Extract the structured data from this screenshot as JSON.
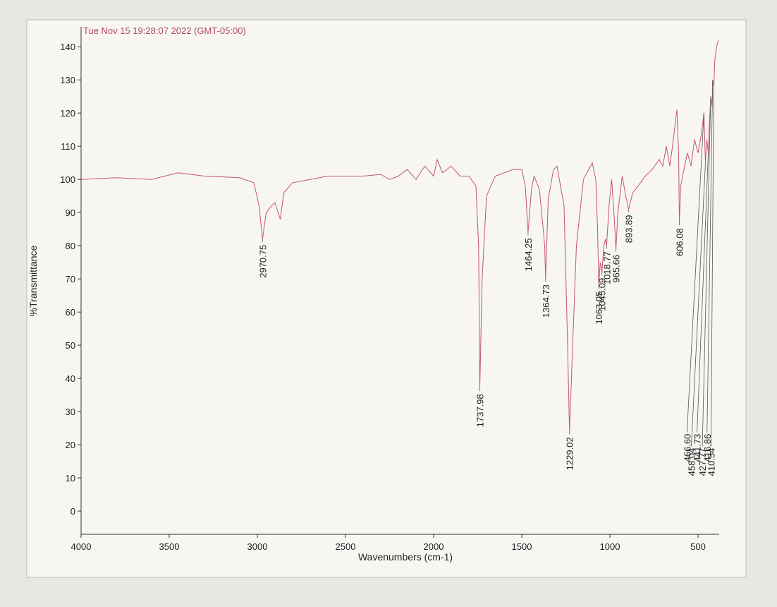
{
  "chart_data": {
    "type": "line",
    "title": "Tue Nov 15 19:28:07 2022 (GMT-05:00)",
    "xlabel": "Wavenumbers (cm-1)",
    "ylabel": "%Transmittance",
    "color": "#c4566e",
    "xlim": [
      4000,
      380
    ],
    "ylim": [
      -7,
      146
    ],
    "xticks": [
      4000,
      3500,
      3000,
      2500,
      2000,
      1500,
      1000,
      500
    ],
    "yticks": [
      0,
      10,
      20,
      30,
      40,
      50,
      60,
      70,
      80,
      90,
      100,
      110,
      120,
      130,
      140
    ],
    "x": [
      4000,
      3800,
      3600,
      3450,
      3300,
      3100,
      3020,
      2990,
      2970.75,
      2950,
      2920,
      2900,
      2870,
      2850,
      2800,
      2600,
      2400,
      2300,
      2250,
      2200,
      2150,
      2100,
      2050,
      2000,
      1980,
      1950,
      1900,
      1850,
      1800,
      1760,
      1745,
      1737.98,
      1725,
      1700,
      1650,
      1550,
      1500,
      1480,
      1464.25,
      1445,
      1430,
      1400,
      1380,
      1370,
      1364.73,
      1350,
      1320,
      1300,
      1260,
      1240,
      1229.02,
      1215,
      1190,
      1150,
      1100,
      1080,
      1070,
      1063.05,
      1055,
      1045.09,
      1035,
      1025,
      1018.77,
      1005,
      990,
      975,
      965.66,
      955,
      930,
      910,
      893.89,
      870,
      840,
      800,
      760,
      720,
      700,
      680,
      660,
      640,
      620,
      610,
      606.08,
      598,
      580,
      560,
      540,
      520,
      500,
      480,
      466.6,
      458.04,
      450,
      441.73,
      435,
      427.77,
      420,
      416.86,
      410.54,
      405,
      395,
      385
    ],
    "values": [
      100,
      100.5,
      100,
      102,
      101,
      100.5,
      99,
      92,
      82,
      90,
      92,
      93,
      88,
      96,
      99,
      101,
      101,
      101.5,
      100,
      101,
      103,
      100,
      104,
      101,
      106,
      102,
      104,
      101,
      101,
      98,
      80,
      37,
      70,
      95,
      101,
      103,
      103,
      98,
      84,
      97,
      101,
      97,
      86,
      80,
      70,
      94,
      103,
      104,
      92,
      50,
      24,
      45,
      80,
      100,
      105,
      100,
      85,
      68,
      75,
      72,
      80,
      82,
      80,
      92,
      100,
      88,
      79,
      90,
      101,
      95,
      91,
      96,
      98,
      101,
      103,
      106,
      104,
      110,
      104,
      112,
      121,
      108,
      87,
      98,
      103,
      108,
      104,
      112,
      108,
      114,
      120,
      105,
      112,
      108,
      118,
      125,
      122,
      130,
      128,
      136,
      140,
      142
    ],
    "peaks": [
      {
        "label": "2970.75",
        "x": 2970.75,
        "y": 82
      },
      {
        "label": "1737.98",
        "x": 1737.98,
        "y": 37
      },
      {
        "label": "1464.25",
        "x": 1464.25,
        "y": 84
      },
      {
        "label": "1364.73",
        "x": 1364.73,
        "y": 70
      },
      {
        "label": "1229.02",
        "x": 1229.02,
        "y": 24
      },
      {
        "label": "1063.05",
        "x": 1063.05,
        "y": 68
      },
      {
        "label": "1045.09",
        "x": 1045.09,
        "y": 72
      },
      {
        "label": "1018.77",
        "x": 1018.77,
        "y": 80
      },
      {
        "label": "965.66",
        "x": 965.66,
        "y": 79
      },
      {
        "label": "893.89",
        "x": 893.89,
        "y": 91
      },
      {
        "label": "606.08",
        "x": 606.08,
        "y": 87
      },
      {
        "label": "466.60",
        "x": 466.6,
        "y": 120
      },
      {
        "label": "458.04",
        "x": 458.04,
        "y": 105
      },
      {
        "label": "441.73",
        "x": 441.73,
        "y": 108
      },
      {
        "label": "427.77",
        "x": 427.77,
        "y": 125
      },
      {
        "label": "416.86",
        "x": 416.86,
        "y": 130
      },
      {
        "label": "410.54",
        "x": 410.54,
        "y": 128
      }
    ]
  }
}
